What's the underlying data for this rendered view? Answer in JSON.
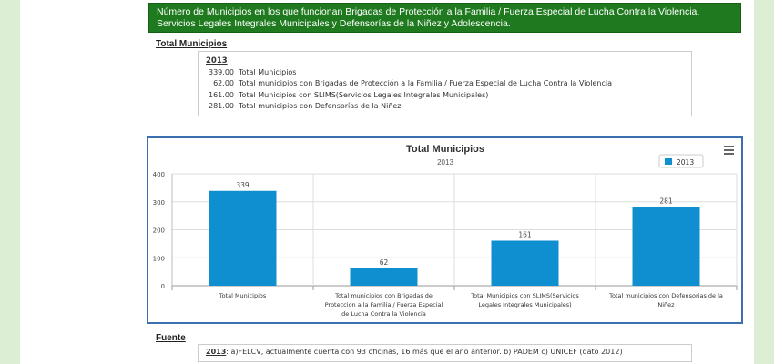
{
  "header": {
    "text": "Número de Municipios en los que funcionan Brigadas de Protección a la Familia / Fuerza Especial de Lucha Contra la Violencia, Servicios Legales Integrales Municipales y Defensorías de la Niñez y Adolescencia."
  },
  "summary": {
    "section_label": "Total Municipios",
    "year": "2013",
    "rows": [
      {
        "value": "339.00",
        "label": "Total Municipios"
      },
      {
        "value": "62.00",
        "label": "Total municipios con Brigadas de Protección a la Familia / Fuerza Especial de Lucha Contra la Violencia"
      },
      {
        "value": "161.00",
        "label": "Total Municipios con SLIMS(Servicios Legales Integrales Municipales)"
      },
      {
        "value": "281.00",
        "label": "Total municipios con Defensorías de la Niñez"
      }
    ]
  },
  "chart_data": {
    "type": "bar",
    "title": "Total Municipios",
    "subtitle": "2013",
    "categories": [
      "Total Municipios",
      "Total municipios con Brigadas de Protección a la Familia / Fuerza Especial de Lucha Contra la Violencia",
      "Total Municipios con SLIMS(Servicios Legales Integrales Municipales)",
      "Total municipios con Defensorías de la Niñez"
    ],
    "category_lines": [
      [
        "Total Municipios"
      ],
      [
        "Total municipios con Brigadas de",
        "Proteccion a la Familia / Fuerza Especial",
        "de Lucha Contra la Violencia"
      ],
      [
        "Total Municipios con SLIMS(Servicios",
        "Legales Integrales Municipales)"
      ],
      [
        "Total municipios con Defensorias de la",
        "Niñez"
      ]
    ],
    "series": [
      {
        "name": "2013",
        "values": [
          339,
          62,
          161,
          281
        ],
        "color": "#0f8fcf"
      }
    ],
    "yticks": [
      "0",
      "100",
      "200",
      "300",
      "400"
    ],
    "ylim": [
      0,
      400
    ],
    "grid": true,
    "legend_position": "top-right"
  },
  "fuente": {
    "label": "Fuente",
    "year": "2013",
    "text": ": a)FELCV, actualmente cuenta con 93 oficinas, 16 más que el año anterior. b) PADEM c) UNICEF (dato 2012)"
  },
  "colors": {
    "header_bg": "#1f7a1f",
    "frame_border": "#3b6fb0",
    "side_bg": "#dcefd4"
  }
}
